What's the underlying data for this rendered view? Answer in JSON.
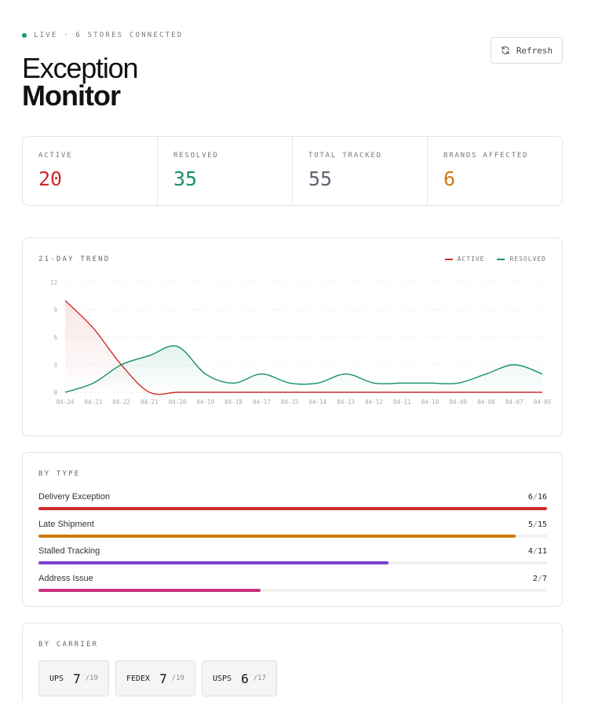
{
  "header": {
    "status_text": "LIVE · 6 STORES CONNECTED",
    "title_line1": "Exception",
    "title_line2": "Monitor",
    "refresh_label": "Refresh"
  },
  "stats": [
    {
      "label": "ACTIVE",
      "value": "20",
      "color": "#d12b2b"
    },
    {
      "label": "RESOLVED",
      "value": "35",
      "color": "#159267"
    },
    {
      "label": "TOTAL TRACKED",
      "value": "55",
      "color": "#5b6570"
    },
    {
      "label": "BRANDS AFFECTED",
      "value": "6",
      "color": "#d07a13"
    }
  ],
  "trend": {
    "label": "21-DAY TREND",
    "legend": [
      {
        "name": "ACTIVE",
        "color": "#d12b2b"
      },
      {
        "name": "RESOLVED",
        "color": "#159267"
      }
    ]
  },
  "chart_data": {
    "type": "line",
    "x": [
      "04-24",
      "04-23",
      "04-22",
      "04-21",
      "04-20",
      "04-19",
      "04-18",
      "04-17",
      "04-15",
      "04-14",
      "04-13",
      "04-12",
      "04-11",
      "04-10",
      "04-09",
      "04-08",
      "04-07",
      "04-05"
    ],
    "series": [
      {
        "name": "ACTIVE",
        "color": "#d12b2b",
        "values": [
          10,
          7,
          3,
          0,
          0,
          0,
          0,
          0,
          0,
          0,
          0,
          0,
          0,
          0,
          0,
          0,
          0,
          0
        ]
      },
      {
        "name": "RESOLVED",
        "color": "#159267",
        "values": [
          0,
          1,
          3,
          4,
          5,
          2,
          1,
          2,
          1,
          1,
          2,
          1,
          1,
          1,
          1,
          2,
          3,
          2
        ]
      }
    ],
    "yticks": [
      "12",
      "9",
      "6",
      "3",
      "0"
    ],
    "ylim": [
      0,
      12
    ],
    "grid": true,
    "legend_position": "top-right"
  },
  "by_type": {
    "label": "BY TYPE",
    "rows": [
      {
        "name": "Delivery Exception",
        "count": "6",
        "total": "16",
        "fraction": 1.0,
        "color": "#d12b2b"
      },
      {
        "name": "Late Shipment",
        "count": "5",
        "total": "15",
        "fraction": 0.939,
        "color": "#d07a13"
      },
      {
        "name": "Stalled Tracking",
        "count": "4",
        "total": "11",
        "fraction": 0.688,
        "color": "#7b3fd1"
      },
      {
        "name": "Address Issue",
        "count": "2",
        "total": "7",
        "fraction": 0.437,
        "color": "#c9307a"
      }
    ]
  },
  "by_carrier": {
    "label": "BY CARRIER",
    "carriers": [
      {
        "name": "UPS",
        "value": "7",
        "total": "/19"
      },
      {
        "name": "FEDEX",
        "value": "7",
        "total": "/19"
      },
      {
        "name": "USPS",
        "value": "6",
        "total": "/17"
      }
    ]
  }
}
